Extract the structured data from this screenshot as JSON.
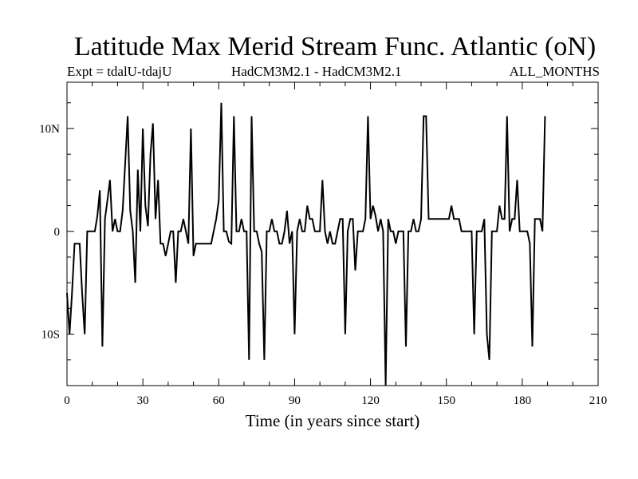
{
  "title": "Latitude Max Merid Stream Func. Atlantic (oN)",
  "subtitle_left": "Expt = tdalU-tdajU",
  "subtitle_center": "HadCM3M2.1 - HadCM3M2.1",
  "subtitle_right": "ALL_MONTHS",
  "chart_data": {
    "type": "line",
    "title": "Latitude Max Merid Stream Func. Atlantic (oN)",
    "xlabel": "Time (in years since start)",
    "ylabel": "",
    "xlim": [
      0,
      210
    ],
    "ylim": [
      -15,
      14.5
    ],
    "x_ticks": [
      0,
      30,
      60,
      90,
      120,
      150,
      180,
      210
    ],
    "x_tick_labels": [
      "0",
      "30",
      "60",
      "90",
      "120",
      "150",
      "180",
      "210"
    ],
    "y_ticks": [
      -10,
      0,
      10
    ],
    "y_tick_labels": [
      "10S",
      "0",
      "10N"
    ],
    "grid": false,
    "series": [
      {
        "color": "#000000",
        "points": [
          [
            0,
            -6
          ],
          [
            1,
            -10
          ],
          [
            2,
            -6
          ],
          [
            3,
            -1.2
          ],
          [
            4,
            -1.2
          ],
          [
            5,
            -1.2
          ],
          [
            6,
            -6
          ],
          [
            7,
            -10
          ],
          [
            8,
            0
          ],
          [
            9,
            0
          ],
          [
            10,
            0
          ],
          [
            11,
            0
          ],
          [
            12,
            1.5
          ],
          [
            13,
            4
          ],
          [
            14,
            -11.2
          ],
          [
            15,
            1.2
          ],
          [
            16,
            3
          ],
          [
            17,
            5
          ],
          [
            18,
            0
          ],
          [
            19,
            1.2
          ],
          [
            20,
            0
          ],
          [
            21,
            0
          ],
          [
            22,
            2
          ],
          [
            23,
            6.5
          ],
          [
            24,
            11.2
          ],
          [
            25,
            2
          ],
          [
            26,
            0
          ],
          [
            27,
            -5
          ],
          [
            28,
            6
          ],
          [
            29,
            0
          ],
          [
            30,
            10
          ],
          [
            31,
            2.5
          ],
          [
            32,
            0.5
          ],
          [
            33,
            7.5
          ],
          [
            34,
            10.5
          ],
          [
            35,
            1.2
          ],
          [
            36,
            5
          ],
          [
            37,
            -1.2
          ],
          [
            38,
            -1.2
          ],
          [
            39,
            -2.4
          ],
          [
            40,
            -1.2
          ],
          [
            41,
            0
          ],
          [
            42,
            0
          ],
          [
            43,
            -5
          ],
          [
            44,
            0
          ],
          [
            45,
            0
          ],
          [
            46,
            1.2
          ],
          [
            47,
            0
          ],
          [
            48,
            -1.2
          ],
          [
            49,
            10
          ],
          [
            50,
            -2.4
          ],
          [
            51,
            -1.2
          ],
          [
            52,
            -1.2
          ],
          [
            53,
            -1.2
          ],
          [
            54,
            -1.2
          ],
          [
            55,
            -1.2
          ],
          [
            56,
            -1.2
          ],
          [
            57,
            -1.2
          ],
          [
            58,
            0
          ],
          [
            59,
            1.2
          ],
          [
            60,
            3
          ],
          [
            61,
            12.5
          ],
          [
            62,
            0
          ],
          [
            63,
            0
          ],
          [
            64,
            -1
          ],
          [
            65,
            -1.2
          ],
          [
            66,
            11.2
          ],
          [
            67,
            0
          ],
          [
            68,
            0
          ],
          [
            69,
            1.2
          ],
          [
            70,
            0
          ],
          [
            71,
            0
          ],
          [
            72,
            -12.5
          ],
          [
            73,
            11.2
          ],
          [
            74,
            0
          ],
          [
            75,
            0
          ],
          [
            76,
            -1.2
          ],
          [
            77,
            -2
          ],
          [
            78,
            -12.5
          ],
          [
            79,
            0
          ],
          [
            80,
            0
          ],
          [
            81,
            1.2
          ],
          [
            82,
            0
          ],
          [
            83,
            0
          ],
          [
            84,
            -1.2
          ],
          [
            85,
            -1.2
          ],
          [
            86,
            0
          ],
          [
            87,
            2
          ],
          [
            88,
            -1.2
          ],
          [
            89,
            0
          ],
          [
            90,
            -10
          ],
          [
            91,
            0
          ],
          [
            92,
            1.2
          ],
          [
            93,
            0
          ],
          [
            94,
            0
          ],
          [
            95,
            2.5
          ],
          [
            96,
            1.2
          ],
          [
            97,
            1.2
          ],
          [
            98,
            0
          ],
          [
            99,
            0
          ],
          [
            100,
            0
          ],
          [
            101,
            5
          ],
          [
            102,
            0
          ],
          [
            103,
            -1.2
          ],
          [
            104,
            0
          ],
          [
            105,
            -1.2
          ],
          [
            106,
            -1.2
          ],
          [
            107,
            0
          ],
          [
            108,
            1.2
          ],
          [
            109,
            1.2
          ],
          [
            110,
            -10
          ],
          [
            111,
            0
          ],
          [
            112,
            1.2
          ],
          [
            113,
            1.2
          ],
          [
            114,
            -3.8
          ],
          [
            115,
            0
          ],
          [
            116,
            0
          ],
          [
            117,
            0
          ],
          [
            118,
            1.2
          ],
          [
            119,
            11.2
          ],
          [
            120,
            1.2
          ],
          [
            121,
            2.5
          ],
          [
            122,
            1.5
          ],
          [
            123,
            0
          ],
          [
            124,
            1.2
          ],
          [
            125,
            0
          ],
          [
            126,
            -15
          ],
          [
            127,
            1.2
          ],
          [
            128,
            0
          ],
          [
            129,
            0
          ],
          [
            130,
            -1.2
          ],
          [
            131,
            0
          ],
          [
            132,
            0
          ],
          [
            133,
            0
          ],
          [
            134,
            -11.2
          ],
          [
            135,
            0
          ],
          [
            136,
            0
          ],
          [
            137,
            1.2
          ],
          [
            138,
            0
          ],
          [
            139,
            0
          ],
          [
            140,
            1.2
          ],
          [
            141,
            11.2
          ],
          [
            142,
            11.2
          ],
          [
            143,
            1.2
          ],
          [
            144,
            1.2
          ],
          [
            145,
            1.2
          ],
          [
            146,
            1.2
          ],
          [
            147,
            1.2
          ],
          [
            148,
            1.2
          ],
          [
            149,
            1.2
          ],
          [
            150,
            1.2
          ],
          [
            151,
            1.2
          ],
          [
            152,
            2.5
          ],
          [
            153,
            1.2
          ],
          [
            154,
            1.2
          ],
          [
            155,
            1.2
          ],
          [
            156,
            0
          ],
          [
            157,
            0
          ],
          [
            158,
            0
          ],
          [
            159,
            0
          ],
          [
            160,
            0
          ],
          [
            161,
            -10
          ],
          [
            162,
            0
          ],
          [
            163,
            0
          ],
          [
            164,
            0
          ],
          [
            165,
            1.2
          ],
          [
            166,
            -10
          ],
          [
            167,
            -12.5
          ],
          [
            168,
            0
          ],
          [
            169,
            0
          ],
          [
            170,
            0
          ],
          [
            171,
            2.5
          ],
          [
            172,
            1.2
          ],
          [
            173,
            1.2
          ],
          [
            174,
            11.2
          ],
          [
            175,
            0
          ],
          [
            176,
            1.2
          ],
          [
            177,
            1.2
          ],
          [
            178,
            5
          ],
          [
            179,
            0
          ],
          [
            180,
            0
          ],
          [
            181,
            0
          ],
          [
            182,
            0
          ],
          [
            183,
            -1.2
          ],
          [
            184,
            -11.2
          ],
          [
            185,
            1.2
          ],
          [
            186,
            1.2
          ],
          [
            187,
            1.2
          ],
          [
            188,
            0
          ],
          [
            189,
            11.2
          ]
        ]
      }
    ]
  }
}
